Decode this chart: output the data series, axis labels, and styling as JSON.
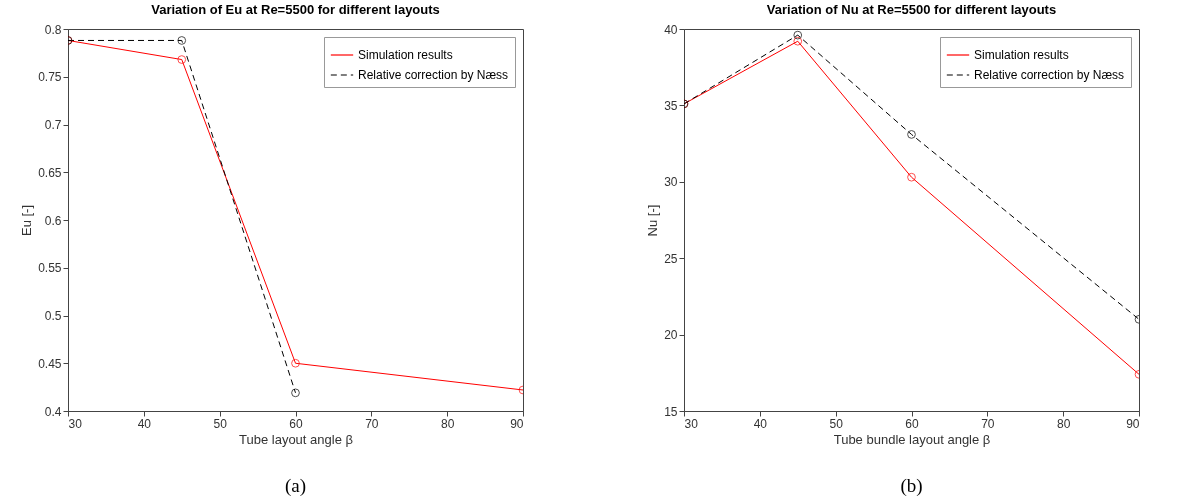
{
  "chart_data": [
    {
      "type": "line",
      "title": "Variation of Eu at Re=5500 for different layouts",
      "xlabel": "Tube layout angle β",
      "ylabel": "Eu [-]",
      "x": [
        30,
        45,
        60,
        90
      ],
      "xlim": [
        30,
        90
      ],
      "xticks": [
        30,
        40,
        50,
        60,
        70,
        80,
        90
      ],
      "ylim": [
        0.4,
        0.8
      ],
      "yticks": [
        0.4,
        0.45,
        0.5,
        0.55,
        0.6,
        0.65,
        0.7,
        0.75,
        0.8
      ],
      "legend": "top right",
      "marker": "circle",
      "annotations": [
        "(a)"
      ],
      "series": [
        {
          "name": "Simulation results",
          "color": "#ff0000",
          "line_style": "solid",
          "values": [
            0.788,
            0.768,
            0.45,
            0.422
          ]
        },
        {
          "name": "Relative correction by Næss",
          "color": "#000000",
          "line_style": "dashed",
          "x": [
            30,
            45,
            60
          ],
          "values": [
            0.788,
            0.788,
            0.419
          ]
        }
      ]
    },
    {
      "type": "line",
      "title": "Variation of Nu at Re=5500 for different layouts",
      "xlabel": "Tube bundle layout angle β",
      "ylabel": "Nu [-]",
      "x": [
        30,
        45,
        60,
        90
      ],
      "xlim": [
        30,
        90
      ],
      "xticks": [
        30,
        40,
        50,
        60,
        70,
        80,
        90
      ],
      "ylim": [
        15,
        40
      ],
      "yticks": [
        15,
        20,
        25,
        30,
        35,
        40
      ],
      "legend": "top right",
      "marker": "circle",
      "annotations": [
        "(b)"
      ],
      "series": [
        {
          "name": "Simulation results",
          "color": "#ff0000",
          "line_style": "solid",
          "values": [
            35.1,
            39.2,
            30.3,
            17.4
          ]
        },
        {
          "name": "Relative correction by Næss",
          "color": "#000000",
          "line_style": "dashed",
          "values": [
            35.1,
            39.6,
            33.1,
            21.0
          ]
        }
      ]
    }
  ]
}
